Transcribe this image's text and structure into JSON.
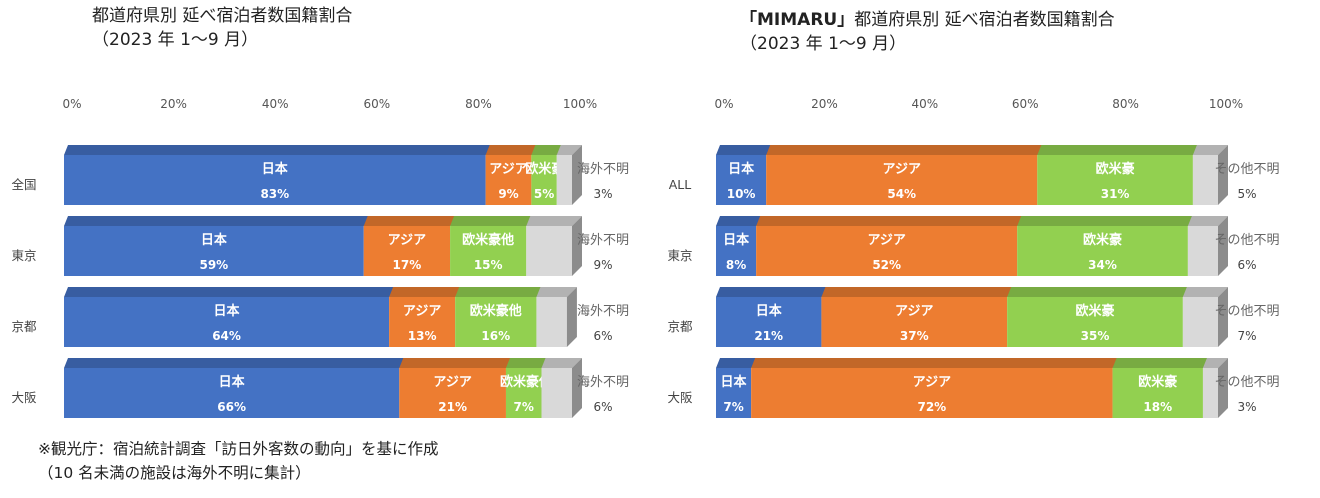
{
  "chart_data": [
    {
      "type": "bar",
      "orientation": "horizontal",
      "stacked": true,
      "title": "都道府県別  延べ宿泊者数国籍割合",
      "subtitle": "（2023 年 1～9 月）",
      "x_ticks": [
        "0%",
        "20%",
        "40%",
        "60%",
        "80%",
        "100%"
      ],
      "xlim": [
        0,
        100
      ],
      "categories": [
        "全国",
        "東京",
        "京都",
        "大阪"
      ],
      "series": [
        {
          "name": "日本",
          "color": "#4472c4",
          "values": [
            83,
            59,
            64,
            66
          ],
          "value_labels": [
            "83%",
            "59%",
            "64%",
            "66%"
          ]
        },
        {
          "name": "アジア",
          "color": "#ed7d31",
          "values": [
            9,
            17,
            13,
            21
          ],
          "value_labels": [
            "9%",
            "17%",
            "13%",
            "21%"
          ]
        },
        {
          "name": "欧米豪他",
          "color": "#92d050",
          "values": [
            5,
            15,
            16,
            7
          ],
          "value_labels": [
            "5%",
            "15%",
            "16%",
            "7%"
          ]
        },
        {
          "name": "海外不明",
          "color": "#d9d9d9",
          "values": [
            3,
            9,
            6,
            6
          ],
          "value_labels": [
            "3%",
            "9%",
            "6%",
            "6%"
          ]
        }
      ],
      "grid": false,
      "legend": "none"
    },
    {
      "type": "bar",
      "orientation": "horizontal",
      "stacked": true,
      "title_bracketed": "「MIMARU」",
      "title": "都道府県別  延べ宿泊者数国籍割合",
      "subtitle": "（2023 年 1～9 月）",
      "x_ticks": [
        "0%",
        "20%",
        "40%",
        "60%",
        "80%",
        "100%"
      ],
      "xlim": [
        0,
        100
      ],
      "categories": [
        "ALL",
        "東京",
        "京都",
        "大阪"
      ],
      "series": [
        {
          "name": "日本",
          "color": "#4472c4",
          "values": [
            10,
            8,
            21,
            7
          ],
          "value_labels": [
            "10%",
            "8%",
            "21%",
            "7%"
          ]
        },
        {
          "name": "アジア",
          "color": "#ed7d31",
          "values": [
            54,
            52,
            37,
            72
          ],
          "value_labels": [
            "54%",
            "52%",
            "37%",
            "72%"
          ]
        },
        {
          "name": "欧米豪",
          "color": "#92d050",
          "values": [
            31,
            34,
            35,
            18
          ],
          "value_labels": [
            "31%",
            "34%",
            "35%",
            "18%"
          ]
        },
        {
          "name": "その他不明",
          "color": "#d9d9d9",
          "values": [
            5,
            6,
            7,
            3
          ],
          "value_labels": [
            "5%",
            "6%",
            "7%",
            "3%"
          ]
        }
      ],
      "grid": false,
      "legend": "none"
    }
  ],
  "notes": {
    "line1": "※観光庁：宿泊統計調査「訪日外客数の動向」を基に作成",
    "line2": "（10 名未満の施設は海外不明に集計）"
  }
}
